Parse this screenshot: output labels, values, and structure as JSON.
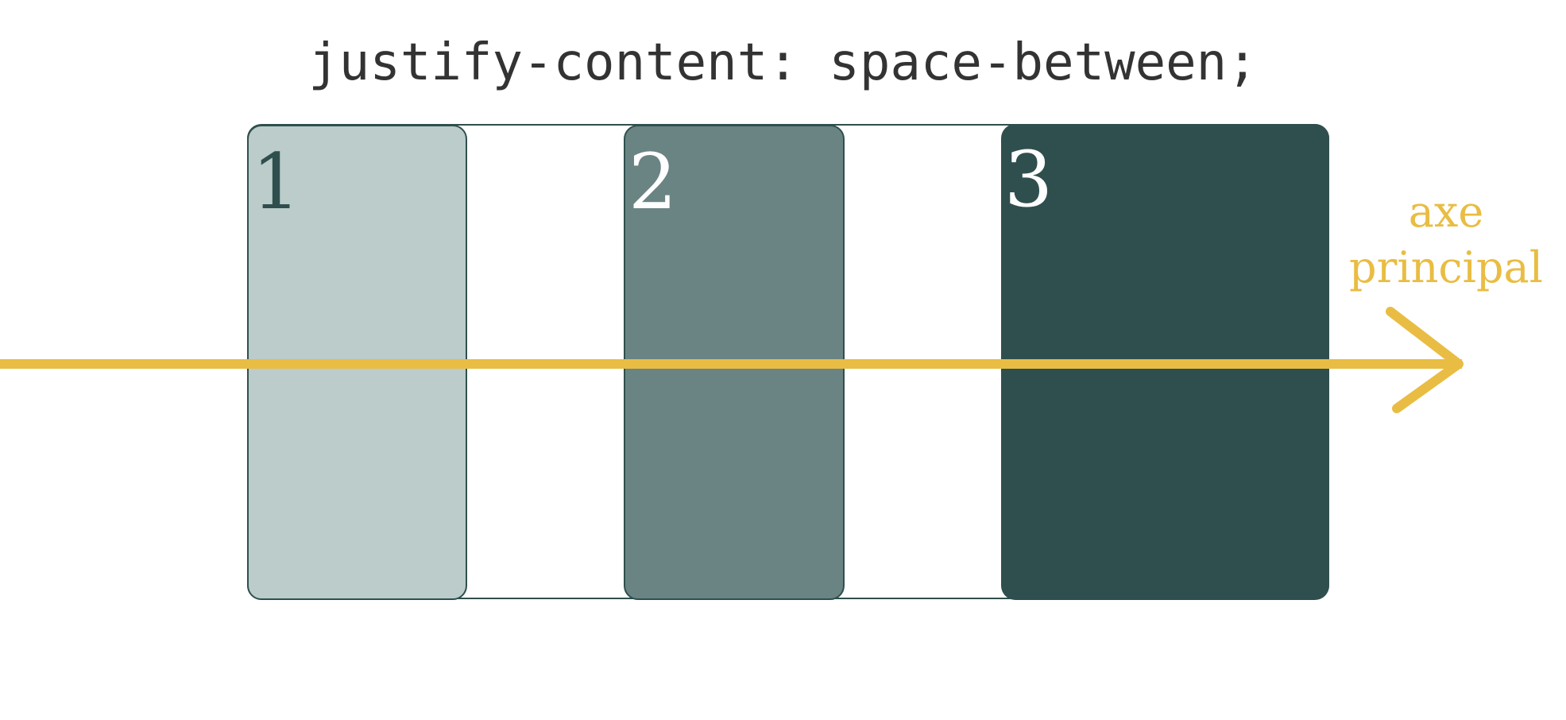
{
  "title": "justify-content: space-between;",
  "items": [
    {
      "label": "1",
      "background": "#bbcccb",
      "label_color": "#2f4f4e"
    },
    {
      "label": "2",
      "background": "#6a8483",
      "label_color": "#ffffff"
    },
    {
      "label": "3",
      "background": "#2f4f4e",
      "label_color": "#ffffff"
    }
  ],
  "axis": {
    "label_line1": "axe",
    "label_line2": "principal",
    "color": "#e9bd43"
  },
  "container_border_color": "#2f4f4e"
}
